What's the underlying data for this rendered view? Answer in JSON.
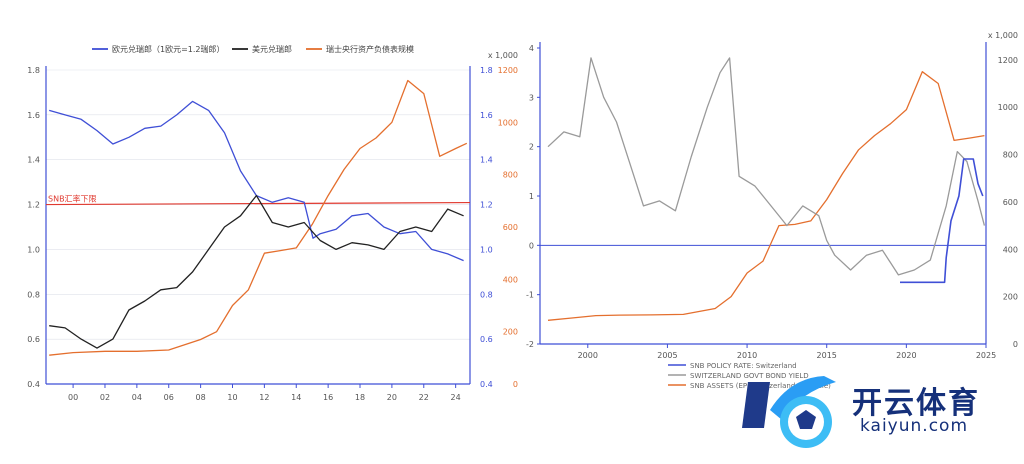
{
  "colors": {
    "blue": "#3f4fd6",
    "black": "#222222",
    "orange": "#e46f2e",
    "red": "#e0392f",
    "gray": "#9a9a9a",
    "grid": "#dfe2ea"
  },
  "chart_data": [
    {
      "type": "line",
      "legend": [
        "欧元兑瑞郎（1欧元=1.2瑞郎）",
        "美元兑瑞郎",
        "瑞士央行资产负债表规模"
      ],
      "legend_placement": "top",
      "x_ticks": [
        "00",
        "02",
        "04",
        "06",
        "08",
        "10",
        "12",
        "14",
        "16",
        "18",
        "20",
        "22",
        "24"
      ],
      "y_left_ticks": [
        "0.4",
        "0.6",
        "0.8",
        "1.0",
        "1.2",
        "1.4",
        "1.6",
        "1.8"
      ],
      "y_left_lim": [
        0.4,
        1.8
      ],
      "y_right1_ticks": [
        "0.4",
        "0.6",
        "0.8",
        "1.0",
        "1.2",
        "1.4",
        "1.6",
        "1.8"
      ],
      "y_right2_ticks": [
        "0",
        "200",
        "400",
        "600",
        "800",
        "1000",
        "1200"
      ],
      "y_right2_lim": [
        0,
        1200
      ],
      "y_right2_unit": "x 1,000",
      "annotation": "SNB汇率下限",
      "annotation_value": 1.2,
      "series": [
        {
          "name": "欧元兑瑞郎（1欧元=1.2瑞郎）",
          "color": "blue",
          "x": [
            1998.5,
            1999.5,
            2000.5,
            2001.5,
            2002.5,
            2003.5,
            2004.5,
            2005.5,
            2006.5,
            2007.5,
            2008.5,
            2009.5,
            2010.5,
            2011.5,
            2012.5,
            2013.5,
            2014.5,
            2015.05,
            2015.5,
            2016.5,
            2017.5,
            2018.5,
            2019.5,
            2020.5,
            2021.5,
            2022.5,
            2023.5,
            2024.5
          ],
          "y": [
            1.62,
            1.6,
            1.58,
            1.53,
            1.47,
            1.5,
            1.54,
            1.55,
            1.6,
            1.66,
            1.62,
            1.52,
            1.35,
            1.24,
            1.21,
            1.23,
            1.21,
            1.05,
            1.07,
            1.09,
            1.15,
            1.16,
            1.1,
            1.07,
            1.08,
            1.0,
            0.98,
            0.95
          ]
        },
        {
          "name": "美元兑瑞郎",
          "color": "black",
          "x": [
            1998.5,
            1999.5,
            2000.5,
            2001.5,
            2002.5,
            2003.5,
            2004.5,
            2005.5,
            2006.5,
            2007.5,
            2008.5,
            2009.5,
            2010.5,
            2011.5,
            2012.5,
            2013.5,
            2014.5,
            2015.5,
            2016.5,
            2017.5,
            2018.5,
            2019.5,
            2020.5,
            2021.5,
            2022.5,
            2023.5,
            2024.5
          ],
          "y": [
            0.66,
            0.65,
            0.6,
            0.56,
            0.6,
            0.73,
            0.77,
            0.82,
            0.83,
            0.9,
            1.0,
            1.1,
            1.15,
            1.24,
            1.12,
            1.1,
            1.12,
            1.04,
            1.0,
            1.03,
            1.02,
            1.0,
            1.08,
            1.1,
            1.08,
            1.18,
            1.15
          ]
        },
        {
          "name": "瑞士央行资产负债表规模",
          "color": "orange",
          "x": [
            1998.5,
            2000,
            2002,
            2004,
            2006,
            2008,
            2009,
            2010,
            2011,
            2012,
            2013,
            2014,
            2015,
            2016,
            2017,
            2018,
            2019,
            2020,
            2021,
            2022,
            2023,
            2024,
            2024.7
          ],
          "y": [
            110,
            120,
            125,
            125,
            130,
            170,
            200,
            300,
            360,
            500,
            510,
            520,
            610,
            720,
            820,
            900,
            940,
            1000,
            1160,
            1110,
            870,
            900,
            920
          ]
        }
      ]
    },
    {
      "type": "line",
      "x_ticks": [
        "2000",
        "2005",
        "2010",
        "2015",
        "2020",
        "2025"
      ],
      "x_lim": [
        1997,
        2025
      ],
      "y_left_ticks": [
        "-2",
        "-1",
        "0",
        "1",
        "2",
        "3",
        "4"
      ],
      "y_left_lim": [
        -2,
        4
      ],
      "y_right_ticks": [
        "0",
        "200",
        "400",
        "600",
        "800",
        "1000",
        "1200"
      ],
      "y_right_lim": [
        0,
        1250
      ],
      "y_right_unit": "x 1,000",
      "legend_placement": "bottom",
      "legend_labels": [
        "SNB POLICY RATE: Switzerland",
        "SWITZERLAND GOVT BOND YIELD",
        "SNB ASSETS (EP): Switzerland (R. Scale)"
      ],
      "series": [
        {
          "name": "SNB POLICY RATE: Switzerland",
          "color": "blue",
          "axis": "left",
          "x": [
            2019.6,
            2022.4,
            2022.5,
            2022.8,
            2023.3,
            2023.6,
            2024.2,
            2024.5,
            2024.8
          ],
          "y": [
            -0.75,
            -0.75,
            -0.25,
            0.5,
            1.0,
            1.75,
            1.75,
            1.25,
            1.0
          ]
        },
        {
          "name": "SWITZERLAND GOVT BOND YIELD",
          "color": "gray",
          "axis": "left",
          "x": [
            1997.5,
            1998.5,
            1999.5,
            2000.2,
            2001,
            2001.8,
            2002.8,
            2003.5,
            2004.5,
            2005.5,
            2006.5,
            2007.5,
            2008.3,
            2008.9,
            2009.5,
            2010.5,
            2011.5,
            2012.5,
            2013.5,
            2014.5,
            2015.0,
            2015.5,
            2016.5,
            2017.5,
            2018.5,
            2019.5,
            2020.5,
            2021.5,
            2022.5,
            2023.2,
            2023.8,
            2024.5,
            2024.9
          ],
          "y": [
            2.0,
            2.3,
            2.2,
            3.8,
            3.0,
            2.5,
            1.5,
            0.8,
            0.9,
            0.7,
            1.8,
            2.8,
            3.5,
            3.8,
            1.4,
            1.2,
            0.8,
            0.4,
            0.8,
            0.6,
            0.1,
            -0.2,
            -0.5,
            -0.2,
            -0.1,
            -0.6,
            -0.5,
            -0.3,
            0.8,
            1.9,
            1.7,
            0.9,
            0.4
          ]
        },
        {
          "name": "SNB ASSETS (EP): Switzerland (R. Scale)",
          "color": "orange",
          "axis": "right",
          "x": [
            1997.5,
            1999,
            2000.5,
            2002,
            2004,
            2006,
            2008,
            2009,
            2010,
            2011,
            2012,
            2013,
            2014,
            2015,
            2016,
            2017,
            2018,
            2019,
            2020,
            2021,
            2022,
            2023,
            2024,
            2024.9
          ],
          "y": [
            100,
            110,
            120,
            122,
            123,
            125,
            150,
            200,
            300,
            350,
            500,
            505,
            520,
            610,
            720,
            820,
            880,
            930,
            990,
            1150,
            1100,
            860,
            870,
            880
          ]
        }
      ]
    }
  ],
  "watermark": {
    "cn": "开云体育",
    "en": "kaiyun.com"
  }
}
